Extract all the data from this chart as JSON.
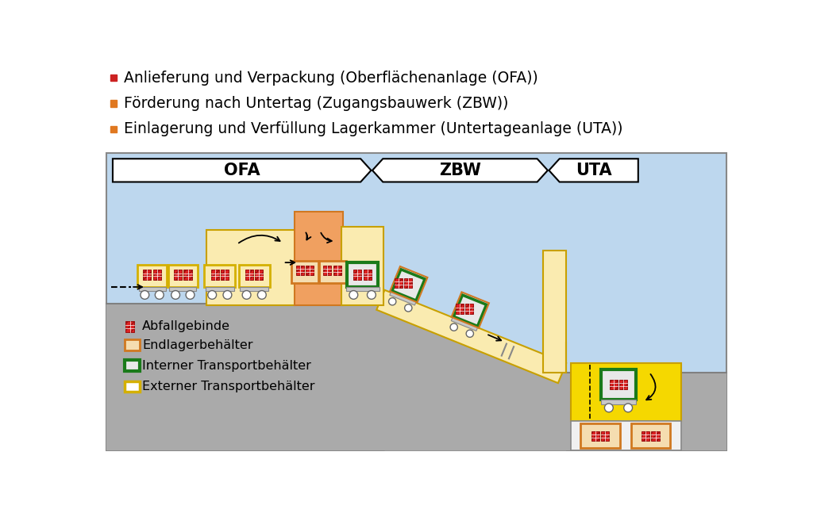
{
  "bg_color": "#ffffff",
  "diagram_bg": "#bdd7ee",
  "ground_color": "#aaaaaa",
  "yellow_fill": "#faebb0",
  "yellow_fill2": "#f5d800",
  "orange_fill": "#f0a060",
  "orange_border": "#d07820",
  "green_border": "#1a7a1a",
  "red_fill": "#cc2222",
  "bullet_colors": [
    "#cc2222",
    "#e07820",
    "#e07820"
  ],
  "text_lines": [
    "Anlieferung und Verpackung (Oberflächenanlage (OFA))",
    "Förderung nach Untertag (Zugangsbauwerk (ZBW))",
    "Einlagerung und Verfüllung Lagerkammer (Untertageanlage (UTA))"
  ],
  "labels": {
    "ofa": "OFA",
    "zbw": "ZBW",
    "uta": "UTA"
  },
  "legend_items": [
    {
      "text": "Abfallgebinde"
    },
    {
      "text": "Endlagerbehälter"
    },
    {
      "text": "Interner Transportbehälter"
    },
    {
      "text": "Externer Transportbehälter"
    }
  ]
}
